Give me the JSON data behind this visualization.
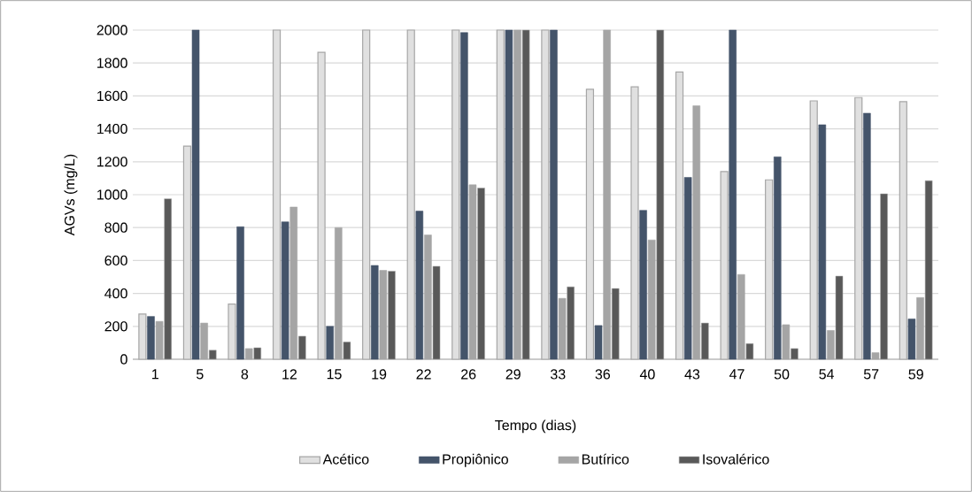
{
  "chart_data": {
    "type": "bar",
    "xlabel": "Tempo (dias)",
    "ylabel": "AGVs (mg/L)",
    "categories": [
      "1",
      "5",
      "8",
      "12",
      "15",
      "19",
      "22",
      "26",
      "29",
      "33",
      "36",
      "40",
      "43",
      "47",
      "50",
      "54",
      "57",
      "59"
    ],
    "series": [
      {
        "name": "Acético",
        "color": "#e0e0e0",
        "values": [
          275,
          1295,
          335,
          2000,
          1865,
          2000,
          2000,
          2000,
          2000,
          2000,
          1640,
          1655,
          1745,
          1140,
          1090,
          1570,
          1590,
          1565
        ]
      },
      {
        "name": "Propiônico",
        "color": "#44546a",
        "values": [
          260,
          2000,
          805,
          835,
          200,
          570,
          900,
          1985,
          2000,
          2000,
          205,
          905,
          1105,
          2000,
          1230,
          1425,
          1495,
          245
        ]
      },
      {
        "name": "Butírico",
        "color": "#a5a5a5",
        "values": [
          230,
          220,
          65,
          925,
          800,
          540,
          755,
          1060,
          2000,
          370,
          2000,
          725,
          1540,
          515,
          210,
          175,
          40,
          375
        ]
      },
      {
        "name": "Isovalérico",
        "color": "#595959",
        "values": [
          975,
          55,
          70,
          140,
          105,
          535,
          565,
          1040,
          2000,
          440,
          430,
          2000,
          220,
          95,
          65,
          505,
          1005,
          1085
        ]
      }
    ],
    "ylim": [
      0,
      2000
    ],
    "yticks": [
      0,
      200,
      400,
      600,
      800,
      1000,
      1200,
      1400,
      1600,
      1800,
      2000
    ],
    "grid": "y",
    "legend": "bottom"
  }
}
